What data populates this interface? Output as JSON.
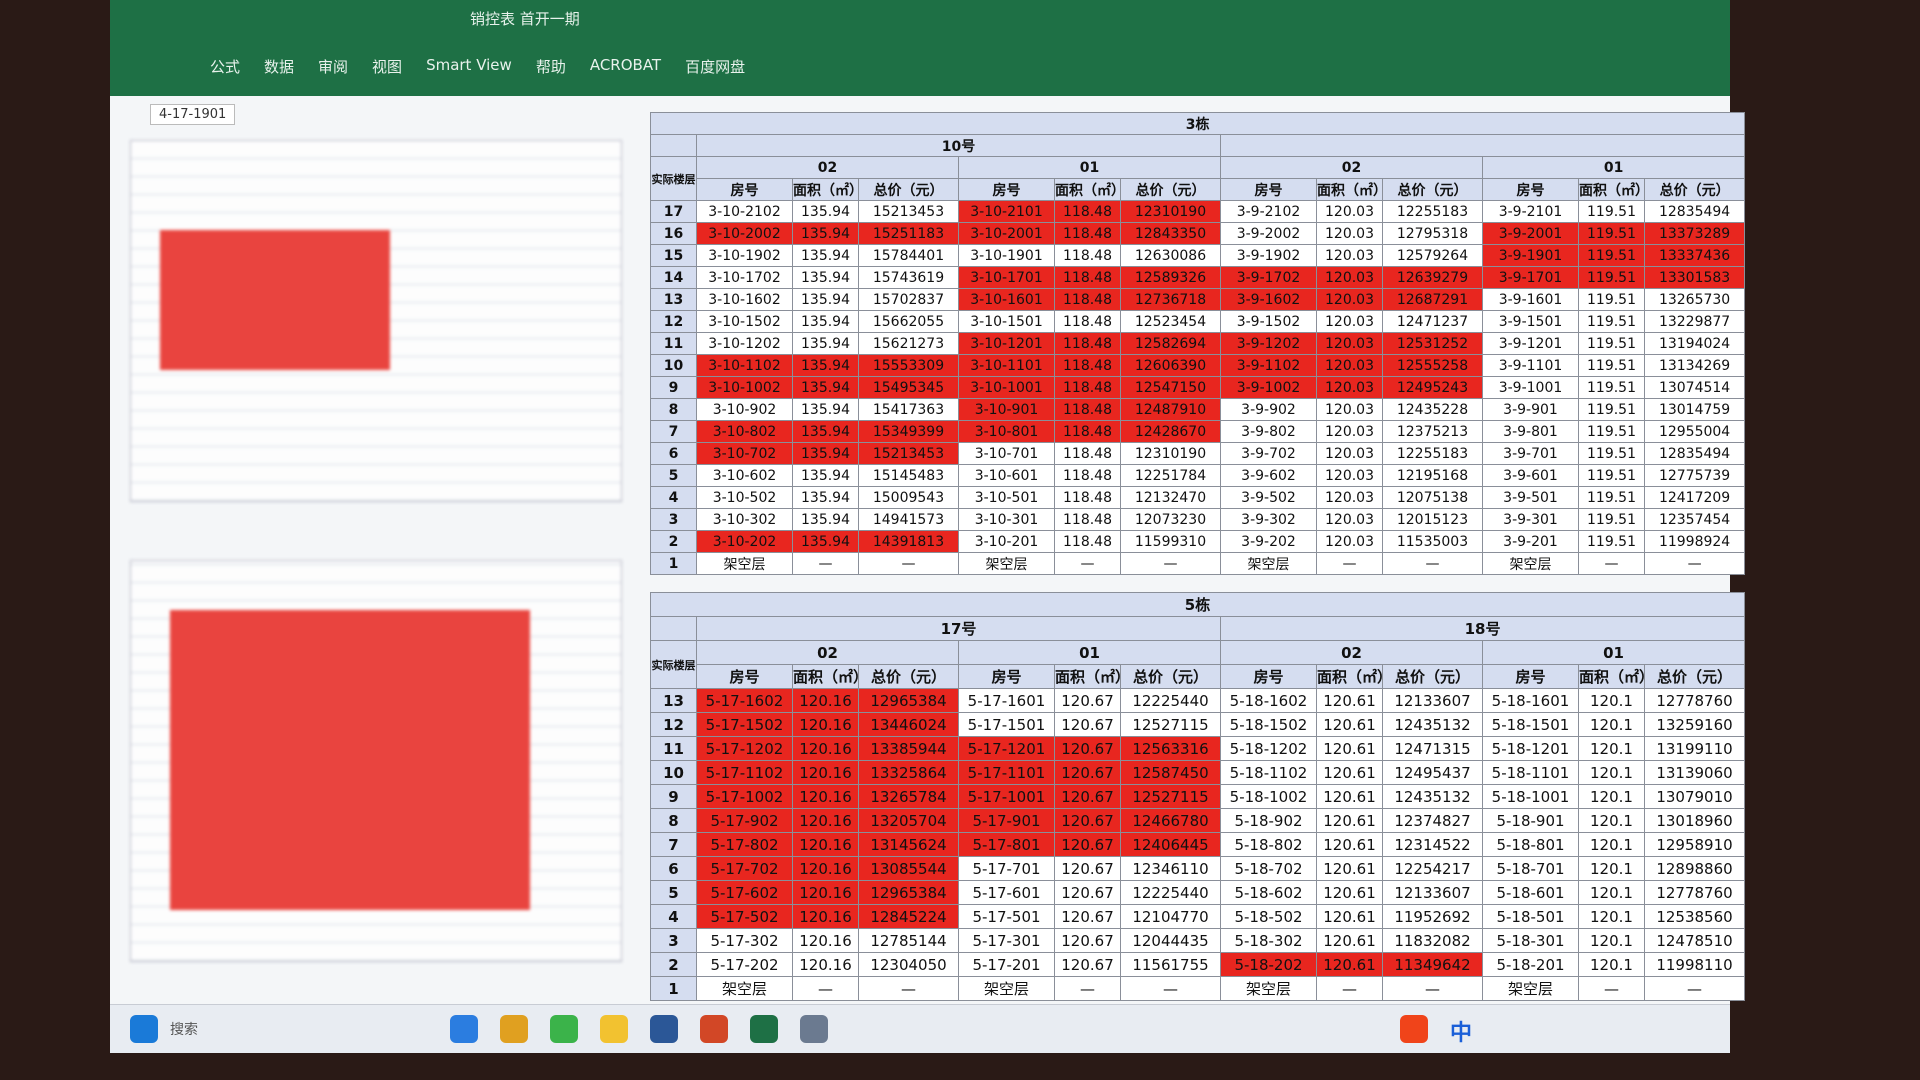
{
  "window": {
    "title": "销控表 首开一期",
    "cell_ref": "4-17-1901",
    "tabs": [
      "公式",
      "数据",
      "审阅",
      "视图",
      "Smart View",
      "帮助",
      "ACROBAT",
      "百度网盘"
    ]
  },
  "highlight_color": "#e8261f",
  "column_headers": [
    "房号",
    "面积（㎡）",
    "总价（元）"
  ],
  "floor_header": "实际楼层",
  "blocks": [
    {
      "title": "3栋",
      "floors": [
        17,
        16,
        15,
        14,
        13,
        12,
        11,
        10,
        9,
        8,
        7,
        6,
        5,
        4,
        3,
        2,
        1
      ],
      "buildings": [
        {
          "name": "10号",
          "units": [
            {
              "name": "02",
              "highlight": [
                1,
                7,
                8,
                10,
                11,
                15
              ],
              "rows": [
                [
                  "3-10-2102",
                  135.94,
                  15213453
                ],
                [
                  "3-10-2002",
                  135.94,
                  15251183
                ],
                [
                  "3-10-1902",
                  135.94,
                  15784401
                ],
                [
                  "3-10-1702",
                  135.94,
                  15743619
                ],
                [
                  "3-10-1602",
                  135.94,
                  15702837
                ],
                [
                  "3-10-1502",
                  135.94,
                  15662055
                ],
                [
                  "3-10-1202",
                  135.94,
                  15621273
                ],
                [
                  "3-10-1102",
                  135.94,
                  15553309
                ],
                [
                  "3-10-1002",
                  135.94,
                  15495345
                ],
                [
                  "3-10-902",
                  135.94,
                  15417363
                ],
                [
                  "3-10-802",
                  135.94,
                  15349399
                ],
                [
                  "3-10-702",
                  135.94,
                  15213453
                ],
                [
                  "3-10-602",
                  135.94,
                  15145483
                ],
                [
                  "3-10-502",
                  135.94,
                  15009543
                ],
                [
                  "3-10-302",
                  135.94,
                  14941573
                ],
                [
                  "3-10-202",
                  135.94,
                  14391813
                ],
                [
                  "架空层",
                  "—",
                  "—"
                ]
              ]
            },
            {
              "name": "01",
              "highlight": [
                0,
                1,
                3,
                4,
                6,
                7,
                8,
                9,
                10
              ],
              "rows": [
                [
                  "3-10-2101",
                  118.48,
                  12310190
                ],
                [
                  "3-10-2001",
                  118.48,
                  12843350
                ],
                [
                  "3-10-1901",
                  118.48,
                  12630086
                ],
                [
                  "3-10-1701",
                  118.48,
                  12589326
                ],
                [
                  "3-10-1601",
                  118.48,
                  12736718
                ],
                [
                  "3-10-1501",
                  118.48,
                  12523454
                ],
                [
                  "3-10-1201",
                  118.48,
                  12582694
                ],
                [
                  "3-10-1101",
                  118.48,
                  12606390
                ],
                [
                  "3-10-1001",
                  118.48,
                  12547150
                ],
                [
                  "3-10-901",
                  118.48,
                  12487910
                ],
                [
                  "3-10-801",
                  118.48,
                  12428670
                ],
                [
                  "3-10-701",
                  118.48,
                  12310190
                ],
                [
                  "3-10-601",
                  118.48,
                  12251784
                ],
                [
                  "3-10-501",
                  118.48,
                  12132470
                ],
                [
                  "3-10-301",
                  118.48,
                  12073230
                ],
                [
                  "3-10-201",
                  118.48,
                  11599310
                ],
                [
                  "架空层",
                  "—",
                  "—"
                ]
              ]
            }
          ]
        },
        {
          "units": [
            {
              "name": "02",
              "highlight": [
                3,
                4,
                6,
                7,
                8
              ],
              "rows": [
                [
                  "3-9-2102",
                  120.03,
                  12255183
                ],
                [
                  "3-9-2002",
                  120.03,
                  12795318
                ],
                [
                  "3-9-1902",
                  120.03,
                  12579264
                ],
                [
                  "3-9-1702",
                  120.03,
                  12639279
                ],
                [
                  "3-9-1602",
                  120.03,
                  12687291
                ],
                [
                  "3-9-1502",
                  120.03,
                  12471237
                ],
                [
                  "3-9-1202",
                  120.03,
                  12531252
                ],
                [
                  "3-9-1102",
                  120.03,
                  12555258
                ],
                [
                  "3-9-1002",
                  120.03,
                  12495243
                ],
                [
                  "3-9-902",
                  120.03,
                  12435228
                ],
                [
                  "3-9-802",
                  120.03,
                  12375213
                ],
                [
                  "3-9-702",
                  120.03,
                  12255183
                ],
                [
                  "3-9-602",
                  120.03,
                  12195168
                ],
                [
                  "3-9-502",
                  120.03,
                  12075138
                ],
                [
                  "3-9-302",
                  120.03,
                  12015123
                ],
                [
                  "3-9-202",
                  120.03,
                  11535003
                ],
                [
                  "架空层",
                  "—",
                  "—"
                ]
              ]
            },
            {
              "name": "01",
              "highlight": [
                1,
                2,
                3
              ],
              "rows": [
                [
                  "3-9-2101",
                  119.51,
                  12835494
                ],
                [
                  "3-9-2001",
                  119.51,
                  13373289
                ],
                [
                  "3-9-1901",
                  119.51,
                  13337436
                ],
                [
                  "3-9-1701",
                  119.51,
                  13301583
                ],
                [
                  "3-9-1601",
                  119.51,
                  13265730
                ],
                [
                  "3-9-1501",
                  119.51,
                  13229877
                ],
                [
                  "3-9-1201",
                  119.51,
                  13194024
                ],
                [
                  "3-9-1101",
                  119.51,
                  13134269
                ],
                [
                  "3-9-1001",
                  119.51,
                  13074514
                ],
                [
                  "3-9-901",
                  119.51,
                  13014759
                ],
                [
                  "3-9-801",
                  119.51,
                  12955004
                ],
                [
                  "3-9-701",
                  119.51,
                  12835494
                ],
                [
                  "3-9-601",
                  119.51,
                  12775739
                ],
                [
                  "3-9-501",
                  119.51,
                  12417209
                ],
                [
                  "3-9-301",
                  119.51,
                  12357454
                ],
                [
                  "3-9-201",
                  119.51,
                  11998924
                ],
                [
                  "架空层",
                  "—",
                  "—"
                ]
              ]
            }
          ]
        }
      ]
    },
    {
      "title": "5栋",
      "floors": [
        13,
        12,
        11,
        10,
        9,
        8,
        7,
        6,
        5,
        4,
        3,
        2,
        1
      ],
      "buildings": [
        {
          "name": "17号",
          "units": [
            {
              "name": "02",
              "highlight": [
                0,
                1,
                2,
                3,
                4,
                5,
                6,
                7,
                8,
                9
              ],
              "rows": [
                [
                  "5-17-1602",
                  120.16,
                  12965384
                ],
                [
                  "5-17-1502",
                  120.16,
                  13446024
                ],
                [
                  "5-17-1202",
                  120.16,
                  13385944
                ],
                [
                  "5-17-1102",
                  120.16,
                  13325864
                ],
                [
                  "5-17-1002",
                  120.16,
                  13265784
                ],
                [
                  "5-17-902",
                  120.16,
                  13205704
                ],
                [
                  "5-17-802",
                  120.16,
                  13145624
                ],
                [
                  "5-17-702",
                  120.16,
                  13085544
                ],
                [
                  "5-17-602",
                  120.16,
                  12965384
                ],
                [
                  "5-17-502",
                  120.16,
                  12845224
                ],
                [
                  "5-17-302",
                  120.16,
                  12785144
                ],
                [
                  "5-17-202",
                  120.16,
                  12304050
                ],
                [
                  "架空层",
                  "—",
                  "—"
                ]
              ]
            },
            {
              "name": "01",
              "highlight": [
                2,
                3,
                4,
                5,
                6
              ],
              "rows": [
                [
                  "5-17-1601",
                  120.67,
                  12225440
                ],
                [
                  "5-17-1501",
                  120.67,
                  12527115
                ],
                [
                  "5-17-1201",
                  120.67,
                  12563316
                ],
                [
                  "5-17-1101",
                  120.67,
                  12587450
                ],
                [
                  "5-17-1001",
                  120.67,
                  12527115
                ],
                [
                  "5-17-901",
                  120.67,
                  12466780
                ],
                [
                  "5-17-801",
                  120.67,
                  12406445
                ],
                [
                  "5-17-701",
                  120.67,
                  12346110
                ],
                [
                  "5-17-601",
                  120.67,
                  12225440
                ],
                [
                  "5-17-501",
                  120.67,
                  12104770
                ],
                [
                  "5-17-301",
                  120.67,
                  12044435
                ],
                [
                  "5-17-201",
                  120.67,
                  11561755
                ],
                [
                  "架空层",
                  "—",
                  "—"
                ]
              ]
            }
          ]
        },
        {
          "name": "18号",
          "units": [
            {
              "name": "02",
              "highlight": [
                11
              ],
              "rows": [
                [
                  "5-18-1602",
                  120.61,
                  12133607
                ],
                [
                  "5-18-1502",
                  120.61,
                  12435132
                ],
                [
                  "5-18-1202",
                  120.61,
                  12471315
                ],
                [
                  "5-18-1102",
                  120.61,
                  12495437
                ],
                [
                  "5-18-1002",
                  120.61,
                  12435132
                ],
                [
                  "5-18-902",
                  120.61,
                  12374827
                ],
                [
                  "5-18-802",
                  120.61,
                  12314522
                ],
                [
                  "5-18-702",
                  120.61,
                  12254217
                ],
                [
                  "5-18-602",
                  120.61,
                  12133607
                ],
                [
                  "5-18-502",
                  120.61,
                  11952692
                ],
                [
                  "5-18-302",
                  120.61,
                  11832082
                ],
                [
                  "5-18-202",
                  120.61,
                  11349642
                ],
                [
                  "架空层",
                  "—",
                  "—"
                ]
              ]
            },
            {
              "name": "01",
              "highlight": [],
              "rows": [
                [
                  "5-18-1601",
                  120.1,
                  12778760
                ],
                [
                  "5-18-1501",
                  120.1,
                  13259160
                ],
                [
                  "5-18-1201",
                  120.1,
                  13199110
                ],
                [
                  "5-18-1101",
                  120.1,
                  13139060
                ],
                [
                  "5-18-1001",
                  120.1,
                  13079010
                ],
                [
                  "5-18-901",
                  120.1,
                  13018960
                ],
                [
                  "5-18-801",
                  120.1,
                  12958910
                ],
                [
                  "5-18-701",
                  120.1,
                  12898860
                ],
                [
                  "5-18-601",
                  120.1,
                  12778760
                ],
                [
                  "5-18-501",
                  120.1,
                  12538560
                ],
                [
                  "5-18-301",
                  120.1,
                  12478510
                ],
                [
                  "5-18-201",
                  120.1,
                  11998110
                ],
                [
                  "架空层",
                  "—",
                  "—"
                ]
              ]
            }
          ]
        }
      ]
    }
  ],
  "taskbar": {
    "search": "搜索",
    "ime": "中"
  }
}
